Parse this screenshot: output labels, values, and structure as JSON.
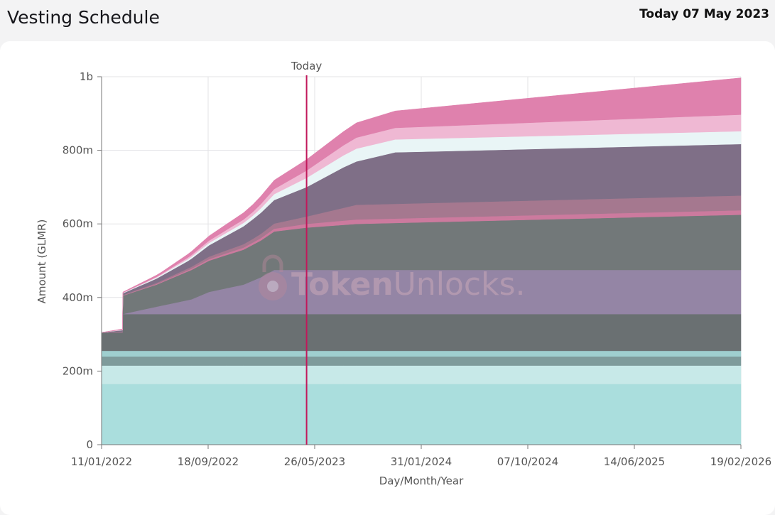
{
  "header": {
    "title": "Vesting Schedule",
    "date": "Today 07 May 2023"
  },
  "watermark": {
    "brand_bold": "Token",
    "brand_light": "Unlocks."
  },
  "chart_data": {
    "type": "area",
    "stacked": true,
    "title": "",
    "xlabel": "Day/Month/Year",
    "ylabel": "Amount (GLMR)",
    "x_start": "2022-01-11",
    "x_end": "2026-02-19",
    "xlim": [
      "2022-01-11",
      "2026-02-19"
    ],
    "ylim": [
      0,
      1000000000
    ],
    "y_ticks": [
      {
        "value": 0,
        "label": "0"
      },
      {
        "value": 200000000,
        "label": "200m"
      },
      {
        "value": 400000000,
        "label": "400m"
      },
      {
        "value": 600000000,
        "label": "600m"
      },
      {
        "value": 800000000,
        "label": "800m"
      },
      {
        "value": 1000000000,
        "label": "1b"
      }
    ],
    "x_ticks": [
      {
        "date": "2022-01-11",
        "label": "11/01/2022"
      },
      {
        "date": "2022-09-18",
        "label": "18/09/2022"
      },
      {
        "date": "2023-05-26",
        "label": "26/05/2023"
      },
      {
        "date": "2024-01-31",
        "label": "31/01/2024"
      },
      {
        "date": "2024-10-07",
        "label": "07/10/2024"
      },
      {
        "date": "2025-06-14",
        "label": "14/06/2025"
      },
      {
        "date": "2026-02-19",
        "label": "19/02/2026"
      }
    ],
    "grid": true,
    "today": {
      "date": "2023-05-07",
      "label": "Today",
      "color": "#c2185b"
    },
    "series": [
      {
        "color": "#aadedd",
        "points": [
          [
            "2022-01-11",
            165000000
          ],
          [
            "2026-02-19",
            165000000
          ]
        ]
      },
      {
        "color": "#c7e9e8",
        "points": [
          [
            "2022-01-11",
            50000000
          ],
          [
            "2026-02-19",
            50000000
          ]
        ]
      },
      {
        "color": "#7e9b9b",
        "points": [
          [
            "2022-01-11",
            25000000
          ],
          [
            "2026-02-19",
            25000000
          ]
        ]
      },
      {
        "color": "#9fcfcf",
        "points": [
          [
            "2022-01-11",
            15000000
          ],
          [
            "2026-02-19",
            15000000
          ]
        ]
      },
      {
        "color": "#6a7072",
        "points": [
          [
            "2022-01-11",
            50000000
          ],
          [
            "2022-03-01",
            50000000
          ],
          [
            "2022-03-02",
            100000000
          ],
          [
            "2026-02-19",
            100000000
          ]
        ]
      },
      {
        "color": "#9485a5",
        "points": [
          [
            "2022-01-11",
            0
          ],
          [
            "2022-03-01",
            0
          ],
          [
            "2022-03-02",
            0
          ],
          [
            "2022-04-10",
            10000000
          ],
          [
            "2022-05-20",
            20000000
          ],
          [
            "2022-06-30",
            30000000
          ],
          [
            "2022-08-10",
            40000000
          ],
          [
            "2022-09-20",
            60000000
          ],
          [
            "2022-10-30",
            70000000
          ],
          [
            "2022-12-10",
            80000000
          ],
          [
            "2023-01-20",
            100000000
          ],
          [
            "2023-02-20",
            120000000
          ],
          [
            "2026-02-19",
            120000000
          ]
        ]
      },
      {
        "color": "#727879",
        "points": [
          [
            "2022-01-11",
            0
          ],
          [
            "2022-03-01",
            0
          ],
          [
            "2022-03-02",
            50000000
          ],
          [
            "2022-05-20",
            60000000
          ],
          [
            "2022-08-10",
            80000000
          ],
          [
            "2022-10-30",
            90000000
          ],
          [
            "2023-01-20",
            100000000
          ],
          [
            "2023-05-07",
            115000000
          ],
          [
            "2023-09-01",
            125000000
          ],
          [
            "2026-02-19",
            150000000
          ]
        ]
      },
      {
        "color": "#cc7a9e",
        "points": [
          [
            "2022-01-11",
            0
          ],
          [
            "2022-06-01",
            2000000
          ],
          [
            "2023-01-01",
            6000000
          ],
          [
            "2023-05-07",
            10000000
          ],
          [
            "2023-09-01",
            12000000
          ],
          [
            "2026-02-19",
            12000000
          ]
        ]
      },
      {
        "color": "#a5788f",
        "points": [
          [
            "2022-01-11",
            0
          ],
          [
            "2022-06-01",
            3000000
          ],
          [
            "2023-01-01",
            10000000
          ],
          [
            "2023-05-07",
            20000000
          ],
          [
            "2023-09-01",
            40000000
          ],
          [
            "2026-02-19",
            40000000
          ]
        ]
      },
      {
        "color": "#7f6f87",
        "points": [
          [
            "2022-01-11",
            0
          ],
          [
            "2022-05-01",
            10000000
          ],
          [
            "2022-08-01",
            20000000
          ],
          [
            "2022-11-01",
            40000000
          ],
          [
            "2023-02-01",
            60000000
          ],
          [
            "2023-05-07",
            80000000
          ],
          [
            "2023-08-01",
            110000000
          ],
          [
            "2023-12-01",
            140000000
          ],
          [
            "2026-02-19",
            140000000
          ]
        ]
      },
      {
        "color": "#e9f5f6",
        "points": [
          [
            "2022-01-11",
            0
          ],
          [
            "2022-06-01",
            3000000
          ],
          [
            "2023-01-01",
            10000000
          ],
          [
            "2023-05-07",
            25000000
          ],
          [
            "2023-09-01",
            35000000
          ],
          [
            "2026-02-19",
            35000000
          ]
        ]
      },
      {
        "color": "#efb8d3",
        "points": [
          [
            "2022-01-11",
            0
          ],
          [
            "2022-06-01",
            2000000
          ],
          [
            "2023-01-01",
            10000000
          ],
          [
            "2023-05-07",
            20000000
          ],
          [
            "2023-09-01",
            30000000
          ],
          [
            "2026-02-19",
            45000000
          ]
        ]
      },
      {
        "color": "#df81ad",
        "points": [
          [
            "2022-01-11",
            0
          ],
          [
            "2022-06-01",
            5000000
          ],
          [
            "2023-01-01",
            20000000
          ],
          [
            "2023-05-07",
            30000000
          ],
          [
            "2023-09-01",
            40000000
          ],
          [
            "2024-01-31",
            50000000
          ],
          [
            "2026-02-19",
            100000000
          ]
        ]
      }
    ]
  }
}
